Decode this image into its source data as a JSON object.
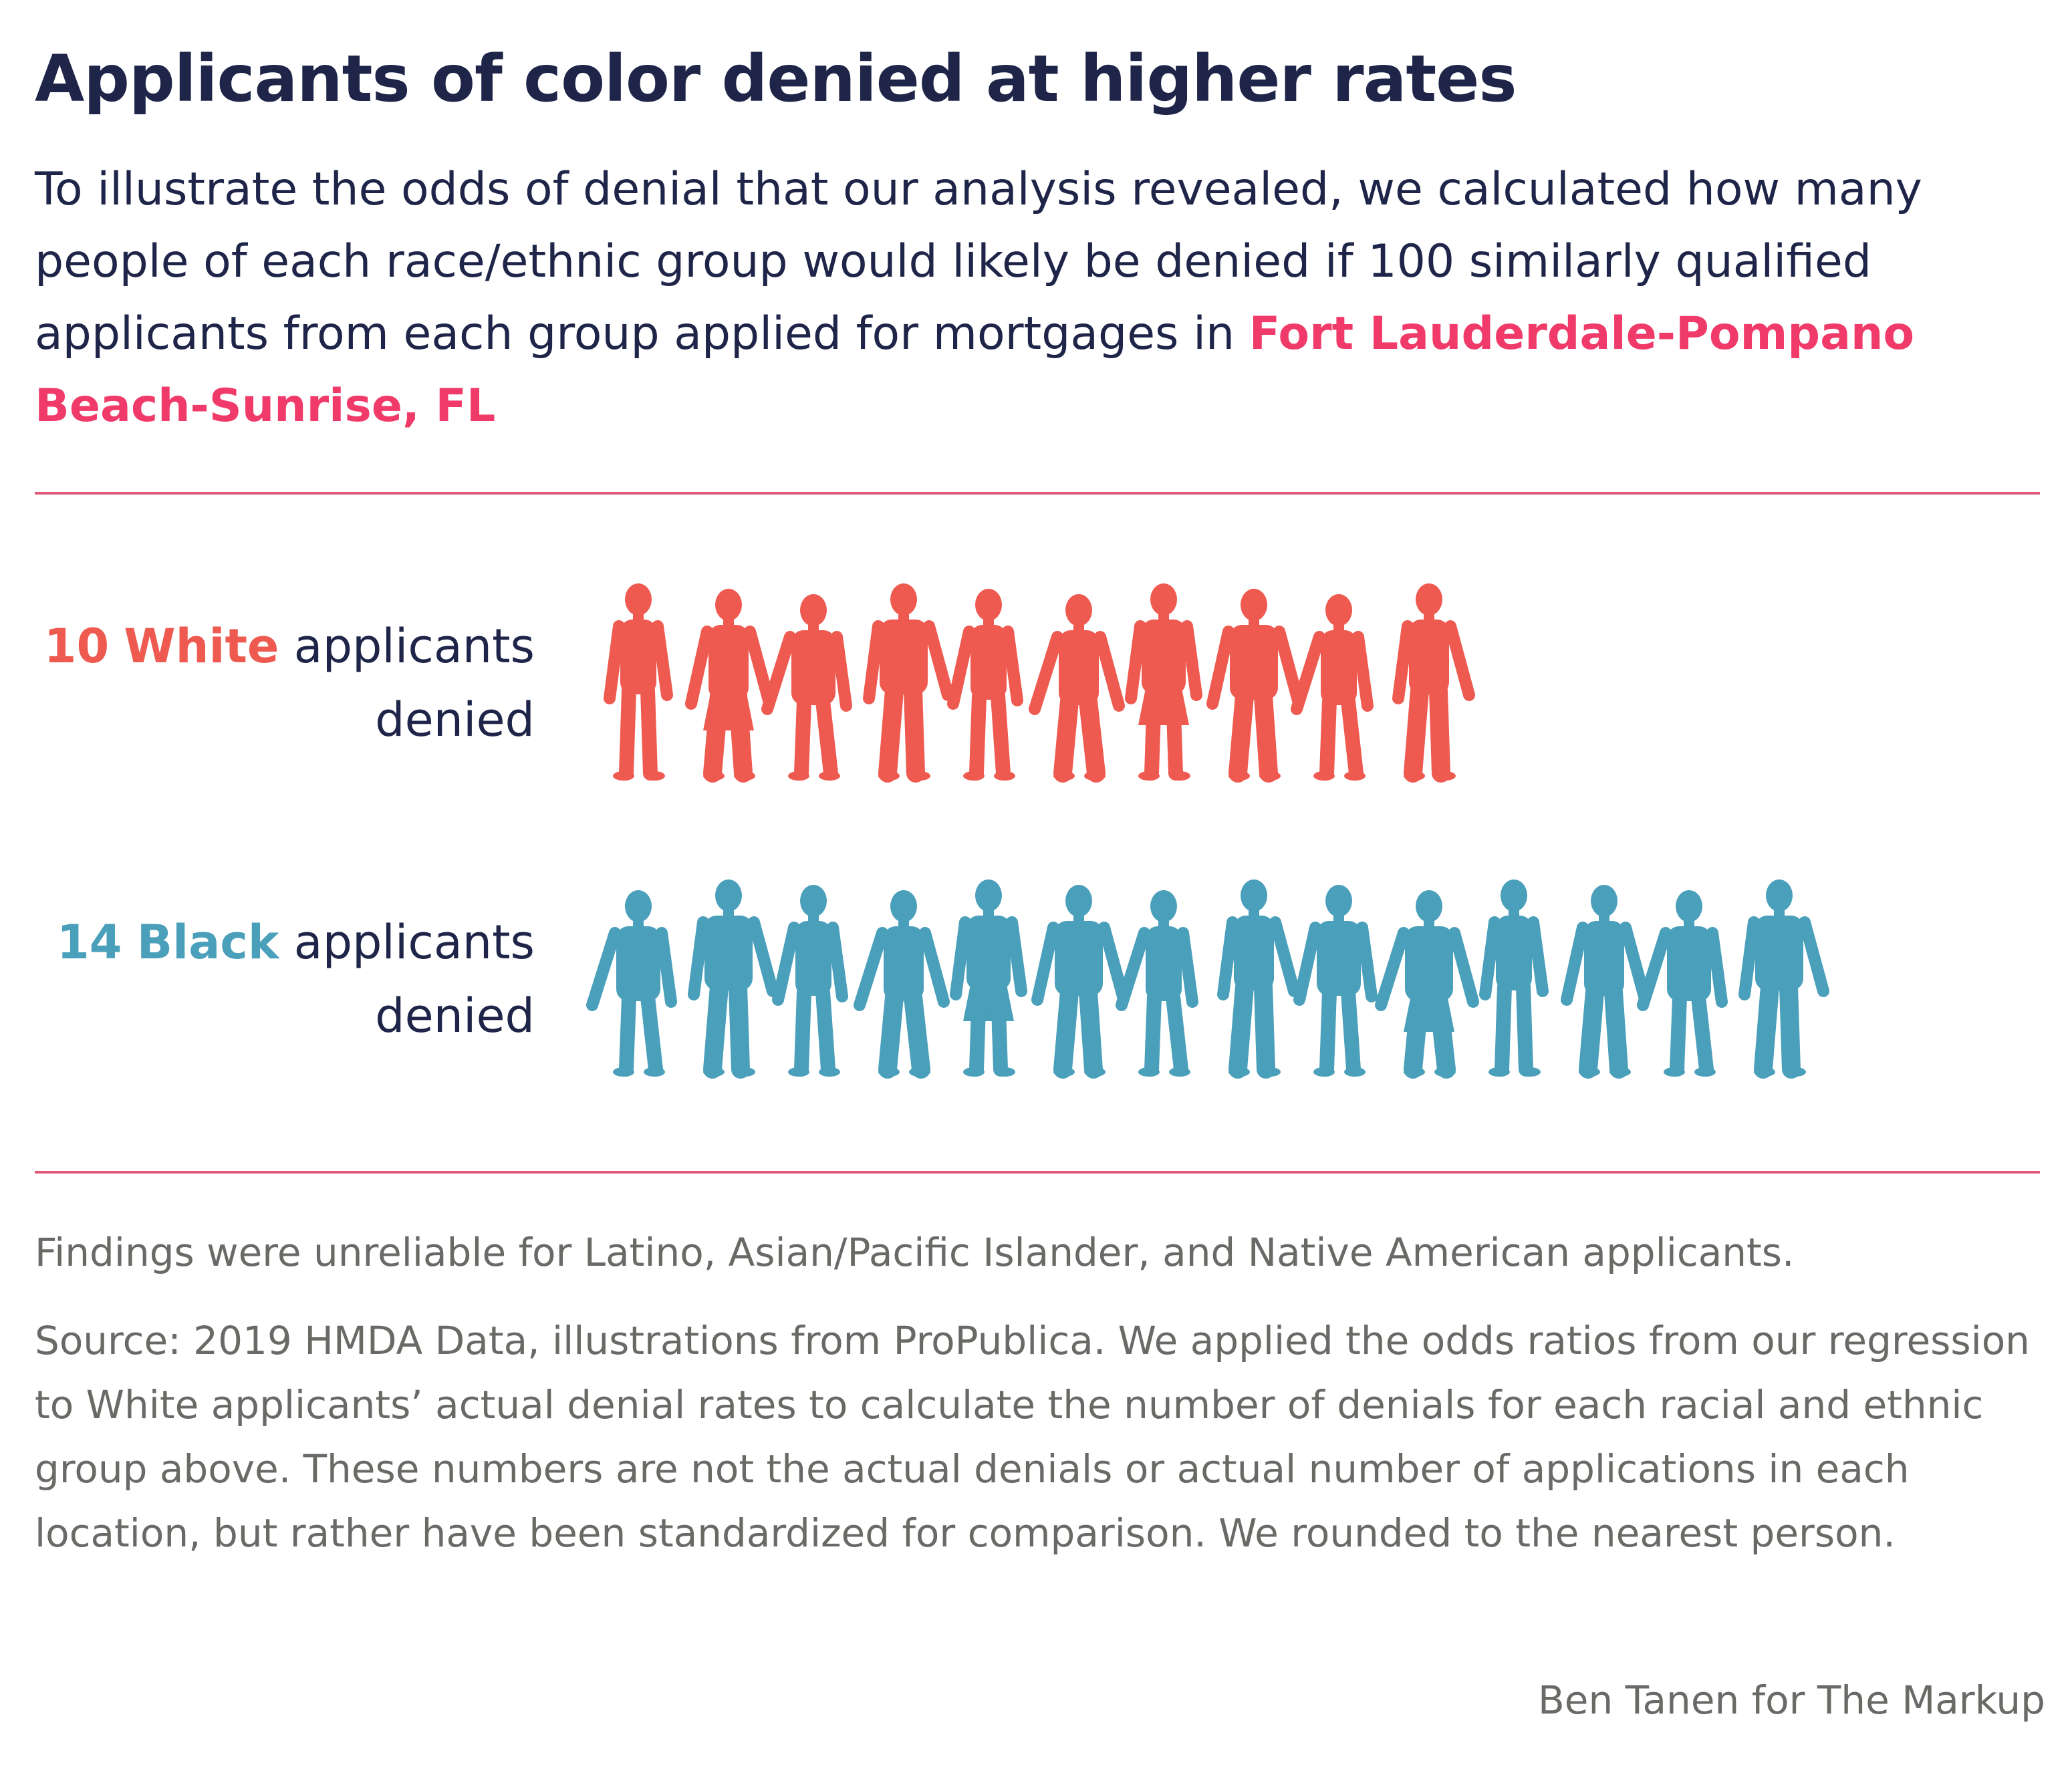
{
  "header": {
    "title": "Applicants of color denied at higher rates",
    "subtitle_text": "To illustrate the odds of denial that our analysis revealed, we calculated how many people of each race/ethnic group would likely be denied if 100 similarly qualified applicants from each group applied for mortgages in",
    "place": "Fort Lauderdale-Pompano Beach-Sunrise, FL"
  },
  "chart_data": {
    "type": "pictogram",
    "unit_of": 100,
    "series": [
      {
        "group": "White",
        "count": 10,
        "count_label": "10",
        "suffix": "applicants denied",
        "color": "#ee5a50"
      },
      {
        "group": "Black",
        "count": 14,
        "count_label": "14",
        "suffix": "applicants denied",
        "color": "#4a9fba"
      }
    ]
  },
  "footer": {
    "note": "Findings were unreliable for Latino, Asian/Pacific Islander, and Native American applicants.",
    "source": "Source: 2019 HMDA Data, illustrations from ProPublica. We applied the odds ratios from our regression to White applicants’ actual denial rates to calculate the number of denials for each racial and ethnic group above. These numbers are not the actual denials or actual number of applications in each location, but rather have been standardized for comparison. We rounded to the nearest person.",
    "credit": "Ben Tanen for The Markup"
  },
  "colors": {
    "title": "#1f2548",
    "accent": "#f03a6a",
    "rule": "#e05a78",
    "muted_text": "#6b6966"
  }
}
